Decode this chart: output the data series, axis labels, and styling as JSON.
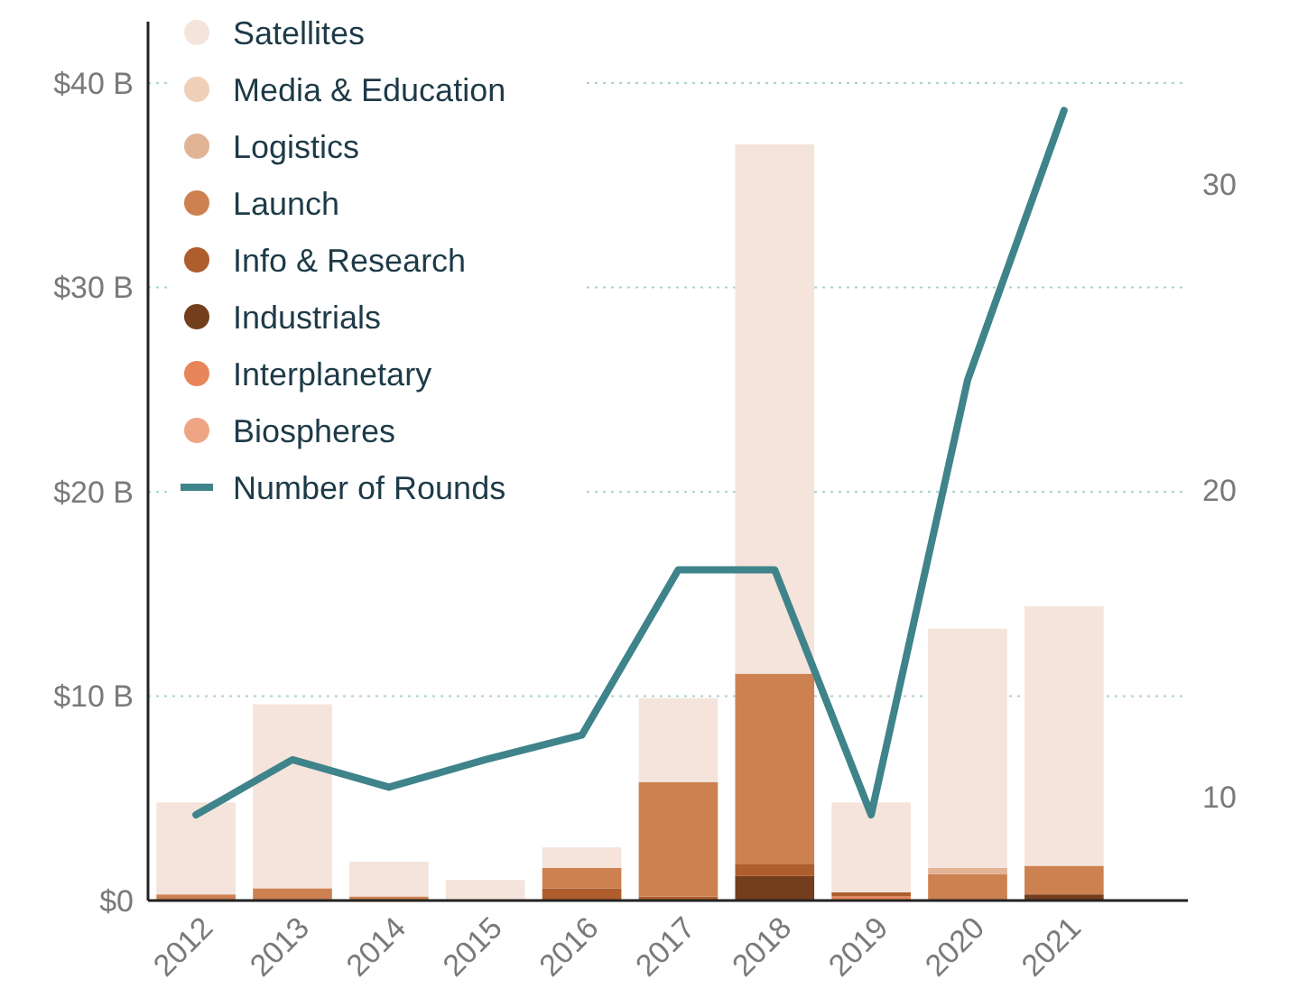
{
  "chart_data": {
    "type": "bar",
    "stacked": true,
    "categories": [
      "2012",
      "2013",
      "2014",
      "2015",
      "2016",
      "2017",
      "2018",
      "2019",
      "2020",
      "2021"
    ],
    "series": [
      {
        "name": "Biospheres",
        "color": "#efa583",
        "values": [
          0,
          0,
          0,
          0,
          0,
          0,
          0,
          0,
          0,
          0
        ]
      },
      {
        "name": "Interplanetary",
        "color": "#e8865a",
        "values": [
          0,
          0,
          0,
          0,
          0,
          0,
          0,
          0.2,
          0,
          0
        ]
      },
      {
        "name": "Industrials",
        "color": "#723e1c",
        "values": [
          0,
          0,
          0,
          0,
          0,
          0,
          1.2,
          0,
          0,
          0.3
        ]
      },
      {
        "name": "Info & Research",
        "color": "#ae5d2c",
        "values": [
          0,
          0,
          0,
          0,
          0.6,
          0.2,
          0.6,
          0.2,
          0,
          0
        ]
      },
      {
        "name": "Launch",
        "color": "#cd8150",
        "values": [
          0.3,
          0.6,
          0.2,
          0,
          1.0,
          5.6,
          9.3,
          0,
          1.3,
          1.4
        ]
      },
      {
        "name": "Logistics",
        "color": "#e2b496",
        "values": [
          0,
          0,
          0,
          0,
          0,
          0,
          0,
          0,
          0.3,
          0
        ]
      },
      {
        "name": "Media & Education",
        "color": "#f0cfb8",
        "values": [
          0,
          0,
          0,
          0,
          0,
          0,
          0,
          0,
          0,
          0
        ]
      },
      {
        "name": "Satellites",
        "color": "#f4e4db",
        "values": [
          4.5,
          9.0,
          1.7,
          1.0,
          1.0,
          4.1,
          25.9,
          4.4,
          11.7,
          12.7
        ]
      },
      {
        "name": "Number of Rounds",
        "type": "line",
        "axis": "y2",
        "color": "#3f838b",
        "values": [
          9.4,
          11.2,
          10.3,
          11.2,
          12,
          17.4,
          17.4,
          9.4,
          23.6,
          32.4
        ]
      }
    ],
    "ylim": [
      0,
      43
    ],
    "yticks": [
      {
        "value": 0,
        "label": "$0"
      },
      {
        "value": 10,
        "label": "$10 B"
      },
      {
        "value": 20,
        "label": "$20 B"
      },
      {
        "value": 30,
        "label": "$30 B"
      },
      {
        "value": 40,
        "label": "$40 B"
      }
    ],
    "y2lim": [
      6.6,
      35.3
    ],
    "y2ticks": [
      10,
      20,
      30
    ],
    "grid": "y",
    "legend": "top left"
  }
}
